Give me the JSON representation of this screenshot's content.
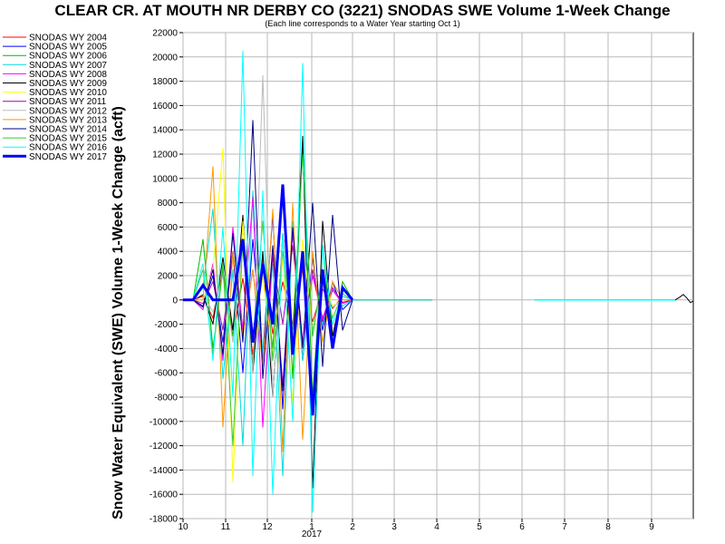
{
  "chart_data": {
    "type": "line",
    "title": "CLEAR CR. AT MOUTH NR DERBY CO (3221) SNODAS SWE Volume 1-Week Change",
    "subtitle": "(Each line corresponds to a Water Year starting Oct 1)",
    "ylabel": "Snow Water Equivalent (SWE) Volume 1-Week Change (acft)",
    "xlabel": "",
    "ylim": [
      -18000,
      22000
    ],
    "y_ticks": [
      22000,
      20000,
      18000,
      16000,
      14000,
      12000,
      10000,
      8000,
      6000,
      4000,
      2000,
      0,
      -2000,
      -4000,
      -6000,
      -8000,
      -10000,
      -12000,
      -14000,
      -16000,
      -18000
    ],
    "x_ticks": [
      "10",
      "11",
      "12",
      "1",
      "2",
      "3",
      "4",
      "5",
      "6",
      "7",
      "8",
      "9"
    ],
    "x_year_label": "2017",
    "grid": true,
    "legend_position": "left",
    "series": [
      {
        "name": "SNODAS WY 2004",
        "color": "#ff0000",
        "values": [
          0,
          0,
          300,
          -1500,
          2500,
          -3000,
          1800,
          -4500,
          3500,
          -2800,
          1500,
          -2000,
          2500,
          -1800,
          900,
          -700,
          300,
          0,
          0,
          0,
          0,
          0,
          0,
          0,
          0,
          0
        ]
      },
      {
        "name": "SNODAS WY 2005",
        "color": "#0000ff",
        "values": [
          0,
          0,
          -500,
          2000,
          -3500,
          4000,
          -6000,
          5000,
          -4500,
          7000,
          -9000,
          6000,
          -5000,
          3500,
          -2500,
          1500,
          -800,
          0,
          0,
          0,
          0,
          0,
          0,
          0,
          0,
          0
        ]
      },
      {
        "name": "SNODAS WY 2006",
        "color": "#00bb00",
        "values": [
          0,
          0,
          5000,
          -4000,
          2500,
          -3000,
          4500,
          -5500,
          3000,
          -4000,
          9000,
          -6500,
          13000,
          -8000,
          4500,
          -3500,
          1500,
          0,
          0,
          0,
          0,
          0,
          0,
          0,
          0,
          0
        ]
      },
      {
        "name": "SNODAS WY 2007",
        "color": "#00dddd",
        "values": [
          0,
          0,
          1000,
          7500,
          -6500,
          2500,
          -12000,
          9000,
          -4500,
          3000,
          -14500,
          6500,
          -5000,
          2500,
          -2000,
          1000,
          -500,
          0,
          0,
          0,
          0,
          0,
          0,
          0,
          0,
          0
        ]
      },
      {
        "name": "SNODAS WY 2008",
        "color": "#ff00ff",
        "values": [
          0,
          0,
          -800,
          3000,
          -5000,
          6000,
          -2500,
          8500,
          -10500,
          4000,
          -7000,
          5500,
          -3500,
          2000,
          -1500,
          800,
          -300,
          0,
          0,
          0,
          0,
          0,
          0,
          0,
          0,
          0
        ]
      },
      {
        "name": "SNODAS WY 2009",
        "color": "#000000",
        "values": [
          0,
          0,
          400,
          -2000,
          3500,
          -2500,
          7000,
          -6000,
          4000,
          -8000,
          5500,
          -4500,
          13500,
          -15500,
          6500,
          -3000,
          1000,
          0,
          0,
          0,
          0,
          0,
          0,
          0,
          0,
          0
        ]
      },
      {
        "name": "SNODAS WY 2010",
        "color": "#ffff00",
        "values": [
          0,
          0,
          0,
          2500,
          12500,
          -15000,
          6500,
          -3500,
          2000,
          -4500,
          3500,
          -8500,
          5000,
          -2500,
          1500,
          -500,
          0,
          0,
          0,
          0,
          0,
          0,
          0,
          0,
          0,
          0
        ]
      },
      {
        "name": "SNODAS WY 2011",
        "color": "#aa00aa",
        "values": [
          0,
          0,
          -300,
          1500,
          -2500,
          4000,
          -3000,
          2500,
          -5000,
          3500,
          -2000,
          4500,
          -3500,
          2500,
          -1800,
          1000,
          -200,
          0,
          0,
          0,
          0,
          0,
          0,
          0,
          0,
          0
        ]
      },
      {
        "name": "SNODAS WY 2012",
        "color": "#bbbbbb",
        "values": [
          0,
          0,
          500,
          -1000,
          2000,
          -3500,
          4500,
          -6000,
          18500,
          -8000,
          5500,
          -4000,
          3000,
          -2500,
          1200,
          -600,
          0,
          0,
          0,
          0,
          0,
          0,
          0,
          0,
          0,
          0
        ]
      },
      {
        "name": "SNODAS WY 2013",
        "color": "#ff9900",
        "values": [
          0,
          0,
          0,
          11000,
          -10500,
          4000,
          -3000,
          2500,
          -5500,
          7500,
          -12500,
          8000,
          -11500,
          4000,
          -3500,
          1500,
          0,
          0,
          0,
          0,
          0,
          0,
          0,
          0,
          0,
          0
        ]
      },
      {
        "name": "SNODAS WY 2014",
        "color": "#000080",
        "values": [
          0,
          0,
          -600,
          2500,
          -4500,
          5500,
          -3500,
          14800,
          -6500,
          4500,
          -7500,
          6000,
          -4000,
          8000,
          -5500,
          7000,
          -2500,
          0,
          0,
          0,
          0,
          0,
          0,
          0,
          0,
          0
        ]
      },
      {
        "name": "SNODAS WY 2015",
        "color": "#33cc33",
        "values": [
          0,
          0,
          2500,
          -4500,
          3000,
          -12000,
          5000,
          -3500,
          6500,
          -5000,
          4000,
          -2500,
          12000,
          -3000,
          2500,
          -1500,
          500,
          0,
          0,
          0,
          0,
          0,
          0,
          0,
          0,
          0
        ]
      },
      {
        "name": "SNODAS WY 2016",
        "color": "#00ffff",
        "values": [
          0,
          0,
          3000,
          -5000,
          6000,
          -8000,
          20500,
          -14500,
          9000,
          -16000,
          5500,
          -10000,
          19500,
          -17500,
          4500,
          -2000,
          300,
          0,
          0,
          0,
          0,
          0,
          0,
          0,
          0,
          0
        ]
      },
      {
        "name": "SNODAS WY 2017",
        "color": "#0000ff",
        "bold": true,
        "values": [
          0,
          0,
          1200,
          0,
          0,
          0,
          5000,
          -3500,
          3000,
          -2000,
          9500,
          -4500,
          4000,
          -9500,
          2500,
          -4000,
          1000,
          0
        ]
      }
    ]
  }
}
